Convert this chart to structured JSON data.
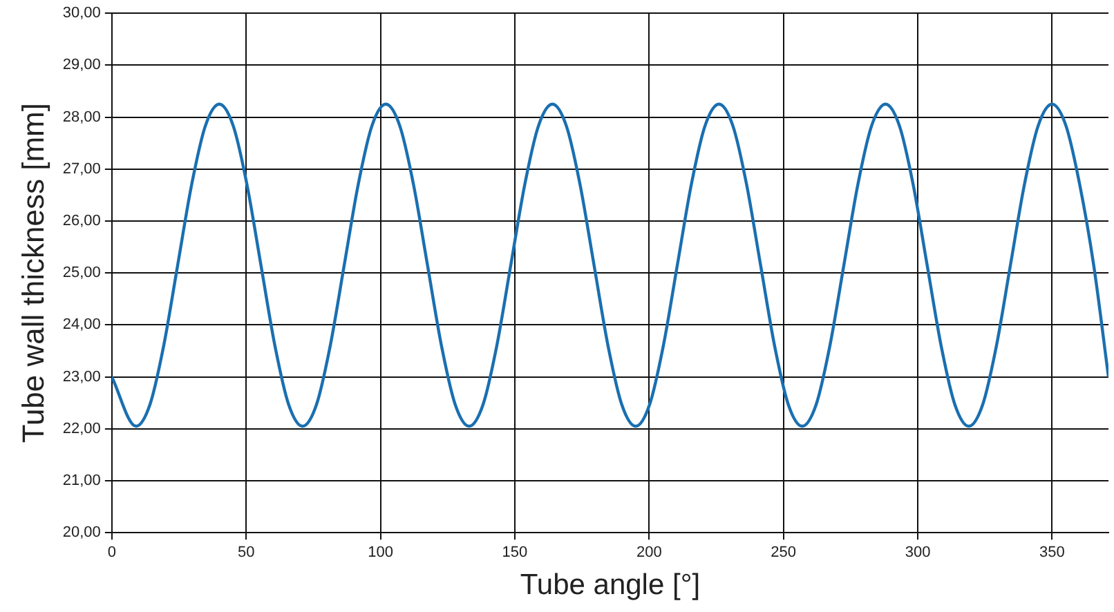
{
  "chart_data": {
    "type": "line",
    "xlabel": "Tube angle [°]",
    "ylabel": "Tube wall thickness [mm]",
    "xlim": [
      0,
      371
    ],
    "ylim": [
      20,
      30
    ],
    "xticks": [
      0,
      50,
      100,
      150,
      200,
      250,
      300,
      350
    ],
    "yticks": [
      {
        "value": 20,
        "label": "20,00"
      },
      {
        "value": 21,
        "label": "21,00"
      },
      {
        "value": 22,
        "label": "22,00"
      },
      {
        "value": 23,
        "label": "23,00"
      },
      {
        "value": 24,
        "label": "24,00"
      },
      {
        "value": 25,
        "label": "25,00"
      },
      {
        "value": 26,
        "label": "26,00"
      },
      {
        "value": 27,
        "label": "27,00"
      },
      {
        "value": 28,
        "label": "28,00"
      },
      {
        "value": 29,
        "label": "29,00"
      },
      {
        "value": 30,
        "label": "30,00"
      }
    ],
    "grid": true,
    "legend": false,
    "marker": "none",
    "line_style": "solid",
    "series": [
      {
        "color": "#1a6fb0",
        "x": [
          0,
          9,
          14.2,
          19.3,
          24.5,
          29.7,
          34.8,
          40,
          45.2,
          50.3,
          55.5,
          60.7,
          65.8,
          71,
          76.2,
          81.3,
          86.5,
          91.7,
          96.8,
          102,
          107.2,
          112.3,
          117.5,
          122.7,
          127.8,
          133,
          138.2,
          143.3,
          148.5,
          153.7,
          158.8,
          164,
          169.2,
          174.3,
          179.5,
          184.7,
          189.8,
          195,
          200.2,
          205.3,
          210.5,
          215.7,
          220.8,
          226,
          231.2,
          236.3,
          241.5,
          246.7,
          251.8,
          257,
          262.2,
          267.3,
          272.5,
          277.7,
          282.8,
          288,
          293.2,
          298.3,
          303.5,
          308.7,
          313.8,
          319,
          324.2,
          329.3,
          334.5,
          339.7,
          344.8,
          350,
          355.2,
          360.3,
          365.5,
          371
        ],
        "values": [
          23.0,
          22.05,
          22.47,
          23.6,
          25.15,
          26.7,
          27.83,
          28.25,
          27.83,
          26.7,
          25.15,
          23.6,
          22.47,
          22.05,
          22.47,
          23.6,
          25.15,
          26.7,
          27.83,
          28.25,
          27.83,
          26.7,
          25.15,
          23.6,
          22.47,
          22.05,
          22.47,
          23.6,
          25.15,
          26.7,
          27.83,
          28.25,
          27.83,
          26.7,
          25.15,
          23.6,
          22.47,
          22.05,
          22.47,
          23.6,
          25.15,
          26.7,
          27.83,
          28.25,
          27.83,
          26.7,
          25.15,
          23.6,
          22.47,
          22.05,
          22.47,
          23.6,
          25.15,
          26.7,
          27.83,
          28.25,
          27.83,
          26.7,
          25.15,
          23.6,
          22.47,
          22.05,
          22.47,
          23.6,
          25.15,
          26.7,
          27.83,
          28.25,
          27.83,
          26.7,
          25.15,
          23.0
        ]
      }
    ]
  }
}
